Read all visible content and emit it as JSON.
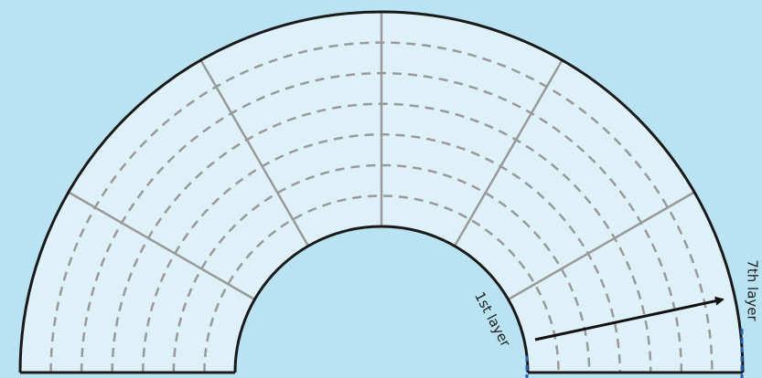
{
  "labels": {
    "inner": "1st layer",
    "outer": "7th layer"
  }
}
